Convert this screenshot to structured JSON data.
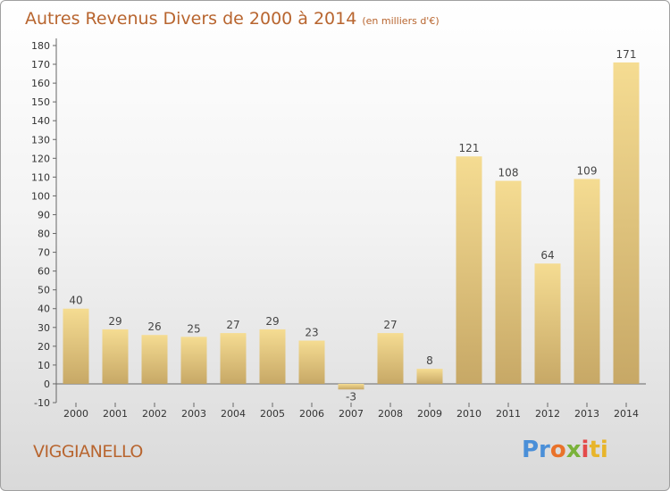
{
  "header": {
    "title": "Autres Revenus Divers de 2000 à 2014",
    "subtitle": "(en milliers d'€)"
  },
  "commune": "VIGGIANELLO",
  "logo": {
    "text": "Proxiti",
    "colors": [
      "#4a8fd8",
      "#e9722a",
      "#7ab23a",
      "#e44a4a",
      "#e8b52a"
    ]
  },
  "chart_data": {
    "type": "bar",
    "title": "Autres Revenus Divers de 2000 à 2014",
    "xlabel": "",
    "ylabel": "",
    "categories": [
      "2000",
      "2001",
      "2002",
      "2003",
      "2004",
      "2005",
      "2006",
      "2007",
      "2008",
      "2009",
      "2010",
      "2011",
      "2012",
      "2013",
      "2014"
    ],
    "values": [
      40,
      29,
      26,
      25,
      27,
      29,
      23,
      -3,
      27,
      8,
      121,
      108,
      64,
      109,
      171
    ],
    "ylim": [
      -10,
      180
    ],
    "yticks": [
      -10,
      0,
      10,
      20,
      30,
      40,
      50,
      60,
      70,
      80,
      90,
      100,
      110,
      120,
      130,
      140,
      150,
      160,
      170,
      180
    ],
    "grid": false,
    "bar_color": "#e6c77a"
  }
}
